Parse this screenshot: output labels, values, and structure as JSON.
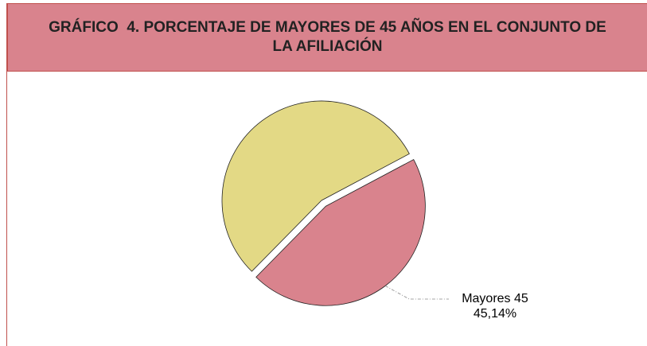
{
  "chart_data": {
    "type": "pie",
    "title": "GRÁFICO  4. PORCENTAJE DE MAYORES DE 45 AÑOS EN EL CONJUNTO DE LA AFILIACIÓN",
    "categories": [
      "Mayores 45",
      null
    ],
    "values": [
      45.14,
      54.86
    ],
    "value_labels": [
      "45,14%",
      null
    ],
    "colors": [
      "#d9838d",
      "#e3d985"
    ]
  }
}
